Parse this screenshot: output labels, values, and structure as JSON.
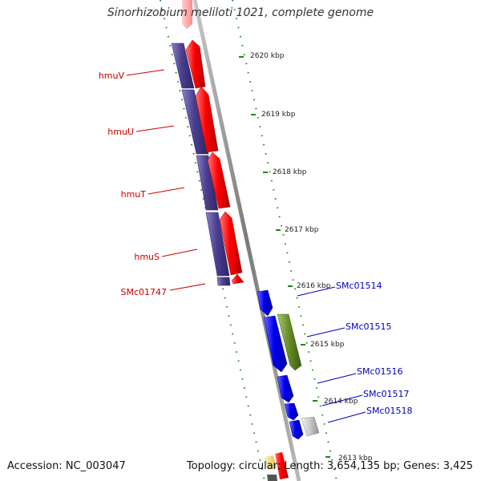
{
  "title": "Sinorhizobium meliloti 1021, complete genome",
  "footer": {
    "accession": "Accession: NC_003047",
    "summary": "Topology: circular; Length: 3,654,135 bp; Genes: 3,425"
  },
  "kbp_marks": [
    "2620 kbp",
    "2619 kbp",
    "2618 kbp",
    "2617 kbp",
    "2616 kbp",
    "2615 kbp",
    "2614 kbp",
    "2613 kbp"
  ],
  "genes_left": [
    "hmuV",
    "hmuU",
    "hmuT",
    "hmuS",
    "SMc01747"
  ],
  "genes_right": [
    "SMc01514",
    "SMc01515",
    "SMc01516",
    "SMc01517",
    "SMc01518"
  ],
  "colors": {
    "left_label": "#cc0000",
    "right_label": "#0000bb",
    "red_gene": "#ff0000",
    "purple_gene": "#4b3f8f",
    "blue_gene": "#0000ee",
    "green_gene": "#6a8f2a",
    "grey_gene": "#c8c8c8",
    "tick": "#1a8a1a",
    "backbone": "#8a8a8a"
  }
}
